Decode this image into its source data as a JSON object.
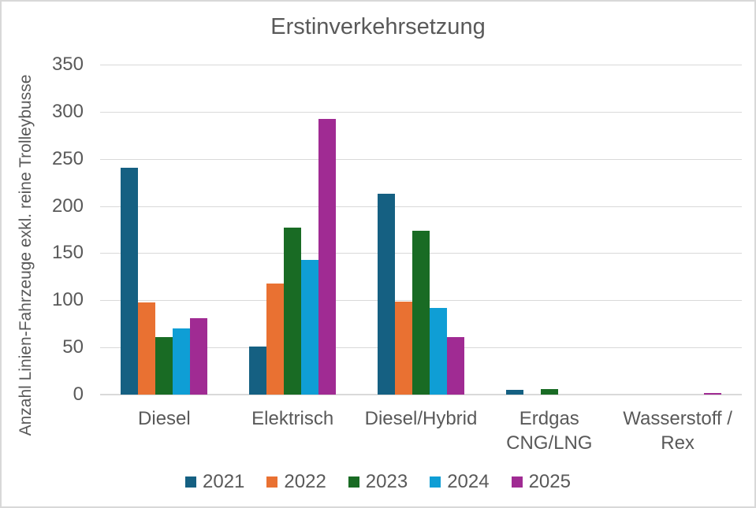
{
  "chart_data": {
    "type": "bar",
    "title": "Erstinverkehrsetzung",
    "ylabel": "Anzahl Linien-Fahrzeuge exkl. reine Trolleybusse",
    "xlabel": "",
    "ylim": [
      0,
      350
    ],
    "yticks": [
      0,
      50,
      100,
      150,
      200,
      250,
      300,
      350
    ],
    "grid": "horizontal",
    "legend_position": "bottom",
    "categories": [
      "Diesel",
      "Elektrisch",
      "Diesel/Hybrid",
      "Erdgas CNG/LNG",
      "Wasserstoff / Rex"
    ],
    "category_label_lines": [
      [
        "Diesel"
      ],
      [
        "Elektrisch"
      ],
      [
        "Diesel/Hybrid"
      ],
      [
        "Erdgas",
        "CNG/LNG"
      ],
      [
        "Wasserstoff /",
        "Rex"
      ]
    ],
    "series": [
      {
        "name": "2021",
        "color": "#156082",
        "values": [
          241,
          51,
          213,
          5,
          0
        ]
      },
      {
        "name": "2022",
        "color": "#E97132",
        "values": [
          98,
          118,
          99,
          0,
          0
        ]
      },
      {
        "name": "2023",
        "color": "#196B24",
        "values": [
          61,
          177,
          174,
          6,
          0
        ]
      },
      {
        "name": "2024",
        "color": "#0F9ED5",
        "values": [
          70,
          143,
          92,
          0,
          0
        ]
      },
      {
        "name": "2025",
        "color": "#A02B93",
        "values": [
          81,
          292,
          61,
          0,
          2
        ]
      }
    ]
  },
  "colors": {
    "text": "#595959",
    "grid": "#D9D9D9",
    "background": "#FFFFFF",
    "border": "#D8D8D8"
  }
}
